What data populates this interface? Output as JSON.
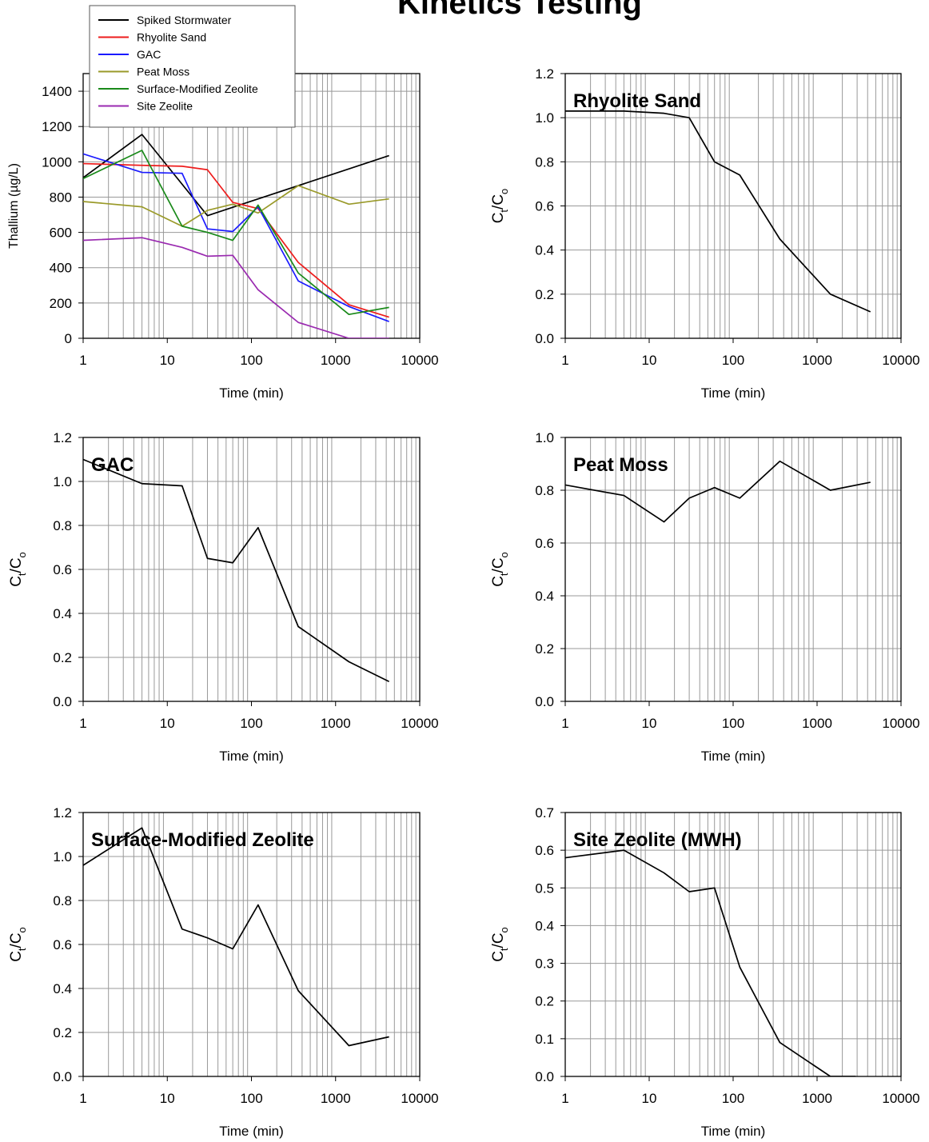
{
  "page": {
    "title": "Kinetics Testing"
  },
  "colors": {
    "Spiked Stormwater": "#000000",
    "Rhyolite Sand": "#ee1c1c",
    "GAC": "#1a1aff",
    "Peat Moss": "#9a9a2a",
    "Surface-Modified Zeolite": "#1a8a1a",
    "Site Zeolite": "#9a2ab0"
  },
  "chart_data": [
    {
      "type": "line",
      "title": "",
      "xlabel": "Time (min)",
      "ylabel": "Thallium (µg/L)",
      "xscale": "log",
      "xlim": [
        1,
        10000
      ],
      "ylim": [
        0,
        1500
      ],
      "xticks": [
        1,
        10,
        100,
        1000,
        10000
      ],
      "yticks": [
        0,
        200,
        400,
        600,
        800,
        1000,
        1200,
        1400
      ],
      "ytick_decimals": 0,
      "grid": true,
      "legend": "top-left",
      "series": [
        {
          "name": "Spiked Stormwater",
          "x": [
            1,
            5,
            30,
            4320
          ],
          "y": [
            910,
            1155,
            695,
            1035
          ]
        },
        {
          "name": "Rhyolite Sand",
          "x": [
            1,
            5,
            15,
            30,
            60,
            120,
            360,
            1440,
            4320
          ],
          "y": [
            990,
            980,
            975,
            955,
            770,
            735,
            430,
            190,
            120
          ]
        },
        {
          "name": "GAC",
          "x": [
            1,
            5,
            15,
            30,
            60,
            120,
            360,
            1440,
            4320
          ],
          "y": [
            1045,
            940,
            935,
            620,
            605,
            745,
            325,
            180,
            95
          ]
        },
        {
          "name": "Peat Moss",
          "x": [
            1,
            5,
            15,
            30,
            60,
            120,
            360,
            1440,
            4320
          ],
          "y": [
            775,
            745,
            635,
            725,
            760,
            710,
            865,
            760,
            790
          ]
        },
        {
          "name": "Surface-Modified Zeolite",
          "x": [
            1,
            5,
            15,
            30,
            60,
            120,
            360,
            1440,
            4320
          ],
          "y": [
            905,
            1065,
            635,
            600,
            555,
            755,
            370,
            135,
            175
          ]
        },
        {
          "name": "Site Zeolite",
          "x": [
            1,
            5,
            15,
            30,
            60,
            120,
            360,
            1440,
            4320
          ],
          "y": [
            555,
            570,
            515,
            465,
            470,
            275,
            90,
            0,
            0
          ]
        }
      ]
    },
    {
      "type": "line",
      "title": "Rhyolite Sand",
      "xlabel": "Time (min)",
      "ylabel": "Ct/Co",
      "xscale": "log",
      "xlim": [
        1,
        10000
      ],
      "ylim": [
        0,
        1.2
      ],
      "xticks": [
        1,
        10,
        100,
        1000,
        10000
      ],
      "yticks": [
        0,
        0.2,
        0.4,
        0.6,
        0.8,
        1.0,
        1.2
      ],
      "ytick_decimals": 1,
      "grid": true,
      "series": [
        {
          "x": [
            1,
            5,
            15,
            30,
            60,
            120,
            360,
            1440,
            4320
          ],
          "y": [
            1.03,
            1.03,
            1.02,
            1.0,
            0.8,
            0.74,
            0.45,
            0.2,
            0.12
          ]
        }
      ]
    },
    {
      "type": "line",
      "title": "GAC",
      "xlabel": "Time (min)",
      "ylabel": "Ct/Co",
      "xscale": "log",
      "xlim": [
        1,
        10000
      ],
      "ylim": [
        0,
        1.2
      ],
      "xticks": [
        1,
        10,
        100,
        1000,
        10000
      ],
      "yticks": [
        0,
        0.2,
        0.4,
        0.6,
        0.8,
        1.0,
        1.2
      ],
      "ytick_decimals": 1,
      "grid": true,
      "series": [
        {
          "x": [
            1,
            5,
            15,
            30,
            60,
            120,
            360,
            1440,
            4320
          ],
          "y": [
            1.1,
            0.99,
            0.98,
            0.65,
            0.63,
            0.79,
            0.34,
            0.18,
            0.09
          ]
        }
      ]
    },
    {
      "type": "line",
      "title": "Peat Moss",
      "xlabel": "Time (min)",
      "ylabel": "Ct/Co",
      "xscale": "log",
      "xlim": [
        1,
        10000
      ],
      "ylim": [
        0,
        1.0
      ],
      "xticks": [
        1,
        10,
        100,
        1000,
        10000
      ],
      "yticks": [
        0,
        0.2,
        0.4,
        0.6,
        0.8,
        1.0
      ],
      "ytick_decimals": 1,
      "grid": true,
      "series": [
        {
          "x": [
            1,
            5,
            15,
            30,
            60,
            120,
            360,
            1440,
            4320
          ],
          "y": [
            0.82,
            0.78,
            0.68,
            0.77,
            0.81,
            0.77,
            0.91,
            0.8,
            0.83
          ]
        }
      ]
    },
    {
      "type": "line",
      "title": "Surface-Modified Zeolite",
      "xlabel": "Time (min)",
      "ylabel": "Ct/Co",
      "xscale": "log",
      "xlim": [
        1,
        10000
      ],
      "ylim": [
        0,
        1.2
      ],
      "xticks": [
        1,
        10,
        100,
        1000,
        10000
      ],
      "yticks": [
        0,
        0.2,
        0.4,
        0.6,
        0.8,
        1.0,
        1.2
      ],
      "ytick_decimals": 1,
      "grid": true,
      "series": [
        {
          "x": [
            1,
            5,
            15,
            30,
            60,
            120,
            360,
            1440,
            4320
          ],
          "y": [
            0.96,
            1.13,
            0.67,
            0.63,
            0.58,
            0.78,
            0.39,
            0.14,
            0.18
          ]
        }
      ]
    },
    {
      "type": "line",
      "title": "Site Zeolite (MWH)",
      "xlabel": "Time (min)",
      "ylabel": "Ct/Co",
      "xscale": "log",
      "xlim": [
        1,
        10000
      ],
      "ylim": [
        0,
        0.7
      ],
      "xticks": [
        1,
        10,
        100,
        1000,
        10000
      ],
      "yticks": [
        0,
        0.1,
        0.2,
        0.3,
        0.4,
        0.5,
        0.6,
        0.7
      ],
      "ytick_decimals": 1,
      "grid": true,
      "series": [
        {
          "x": [
            1,
            5,
            15,
            30,
            60,
            120,
            360,
            1440,
            2880
          ],
          "y": [
            0.58,
            0.6,
            0.54,
            0.49,
            0.5,
            0.29,
            0.09,
            0.0,
            0.0
          ]
        }
      ]
    }
  ]
}
